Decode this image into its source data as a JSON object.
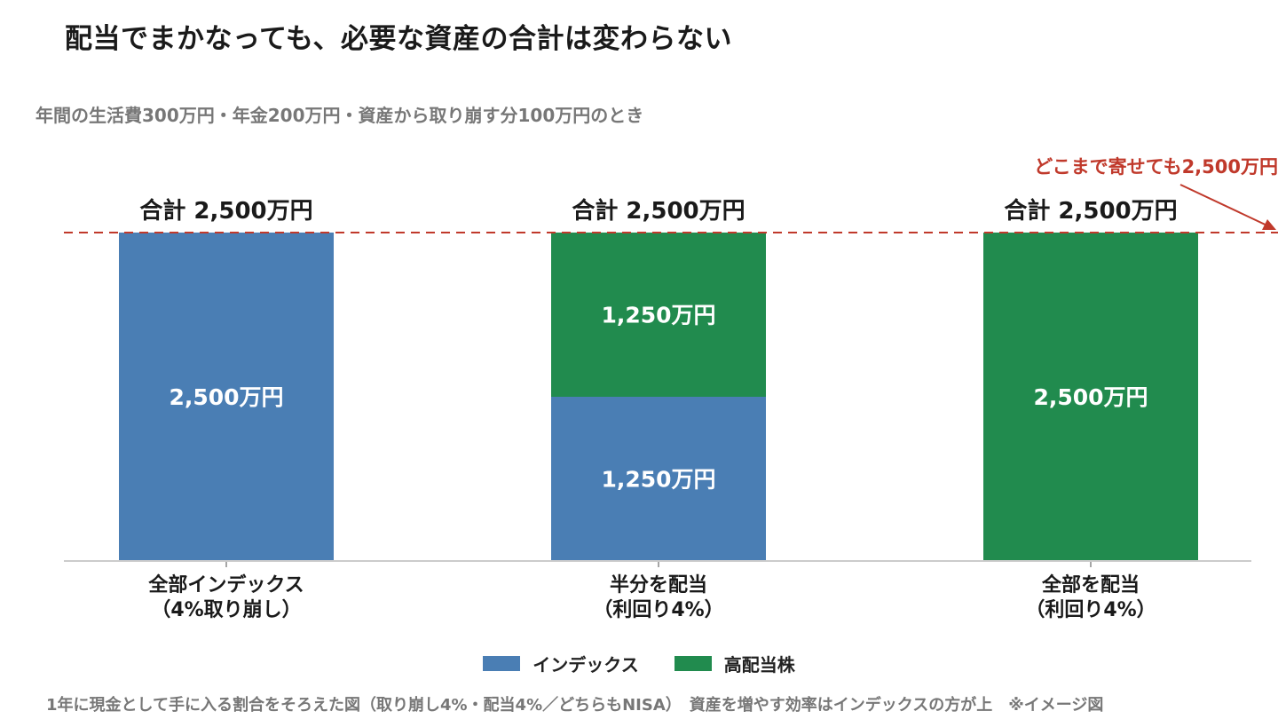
{
  "header": {
    "title": "配当でまかなっても、必要な資産の合計は変わらない",
    "subtitle": "年間の生活費300万円・年金200万円・資産から取り崩す分100万円のとき"
  },
  "footnote": "1年に現金として手に入る割合をそろえた図（取り崩し4%・配当4%／どちらもNISA）　資産を増やす効率はインデックスの方が上　※イメージ図",
  "colors": {
    "index": "#4a7eb4",
    "dividend": "#218b4e",
    "reference_line": "#c0392b",
    "axis": "#cccccc"
  },
  "chart_data": {
    "type": "bar",
    "stacked": true,
    "unit": "万円",
    "categories": [
      [
        "全部インデックス",
        "（4%取り崩し）"
      ],
      [
        "半分を配当",
        "（利回り4%）"
      ],
      [
        "全部を配当",
        "（利回り4%）"
      ]
    ],
    "series": [
      {
        "name": "インデックス",
        "color": "#4a7eb4",
        "values": [
          2500,
          1250,
          0
        ],
        "labels": [
          "2,500万円",
          "1,250万円",
          ""
        ]
      },
      {
        "name": "高配当株",
        "color": "#218b4e",
        "values": [
          0,
          1250,
          2500
        ],
        "labels": [
          "",
          "1,250万円",
          "2,500万円"
        ]
      }
    ],
    "totals": [
      2500,
      2500,
      2500
    ],
    "total_labels": [
      "合計 2,500万円",
      "合計 2,500万円",
      "合計 2,500万円"
    ],
    "ylim": [
      0,
      2500
    ],
    "reference_line": {
      "value": 2500,
      "style": "dashed",
      "annotation": "どこまで寄せても2,500万円"
    },
    "legend_position": "bottom-center",
    "grid": false
  }
}
